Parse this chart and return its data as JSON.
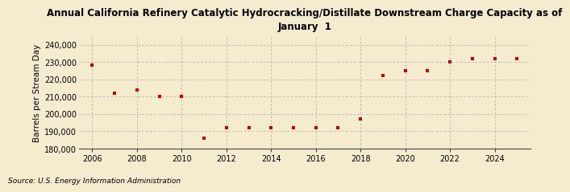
{
  "title": "Annual California Refinery Catalytic Hydrocracking/Distillate Downstream Charge Capacity as of\nJanuary  1",
  "ylabel": "Barrels per Stream Day",
  "source": "Source: U.S. Energy Information Administration",
  "background_color": "#f5ecd0",
  "plot_bg_color": "#f5ecd0",
  "marker_color": "#cc0000",
  "years": [
    2006,
    2007,
    2008,
    2009,
    2010,
    2011,
    2012,
    2013,
    2014,
    2015,
    2016,
    2017,
    2018,
    2019,
    2020,
    2021,
    2022,
    2023,
    2024,
    2025
  ],
  "values": [
    228000,
    212000,
    214000,
    210000,
    210000,
    186000,
    192000,
    192000,
    192000,
    192000,
    192000,
    192000,
    197000,
    222000,
    225000,
    225000,
    230000,
    232000,
    232000,
    232000
  ],
  "xlim": [
    2005.4,
    2025.6
  ],
  "ylim": [
    180000,
    245000
  ],
  "yticks": [
    180000,
    190000,
    200000,
    210000,
    220000,
    230000,
    240000
  ],
  "xticks": [
    2006,
    2008,
    2010,
    2012,
    2014,
    2016,
    2018,
    2020,
    2022,
    2024
  ]
}
